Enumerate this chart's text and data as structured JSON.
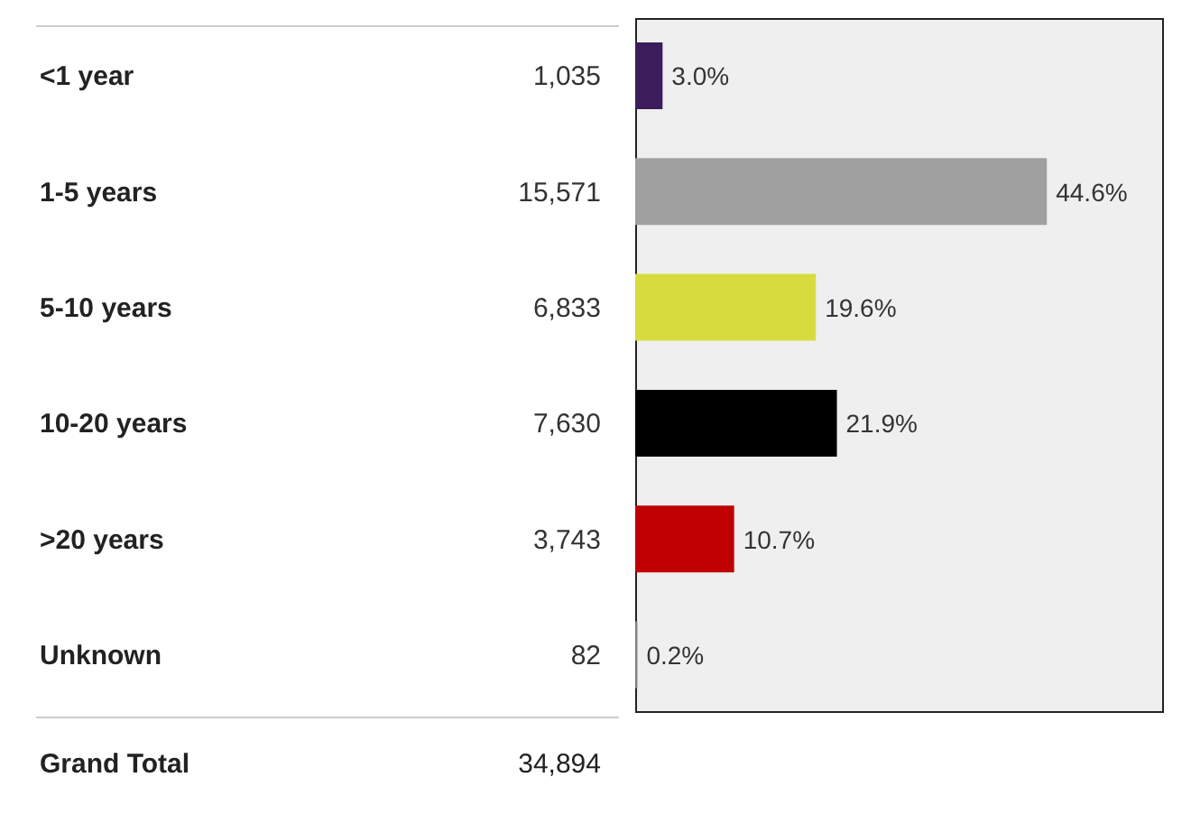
{
  "chart_data": {
    "type": "bar",
    "orientation": "horizontal",
    "categories": [
      "<1 year",
      "1-5 years",
      "5-10 years",
      "10-20 years",
      ">20 years",
      "Unknown"
    ],
    "values": [
      1035,
      15571,
      6833,
      7630,
      3743,
      82
    ],
    "colors": [
      "#3d1c5c",
      "#a0a0a0",
      "#d6dc3e",
      "#000000",
      "#c00000",
      "#808080"
    ],
    "value_labels": [
      "1,035",
      "15,571",
      "6,833",
      "7,630",
      "3,743",
      "82"
    ],
    "xlim": [
      0,
      20000
    ],
    "tick_labels": "y",
    "grid": false,
    "legend": false,
    "annotations": [
      {
        "text": "3.0%",
        "x": 1035,
        "y": "<1 year"
      },
      {
        "text": "44.6%",
        "x": 15571,
        "y": "1-5 years"
      },
      {
        "text": "19.6%",
        "x": 6833,
        "y": "5-10 years"
      },
      {
        "text": "21.9%",
        "x": 7630,
        "y": "10-20 years"
      },
      {
        "text": "10.7%",
        "x": 3743,
        "y": ">20 years"
      },
      {
        "text": "0.2%",
        "x": 82,
        "y": "Unknown"
      },
      "Grand Total",
      "34,894"
    ]
  }
}
